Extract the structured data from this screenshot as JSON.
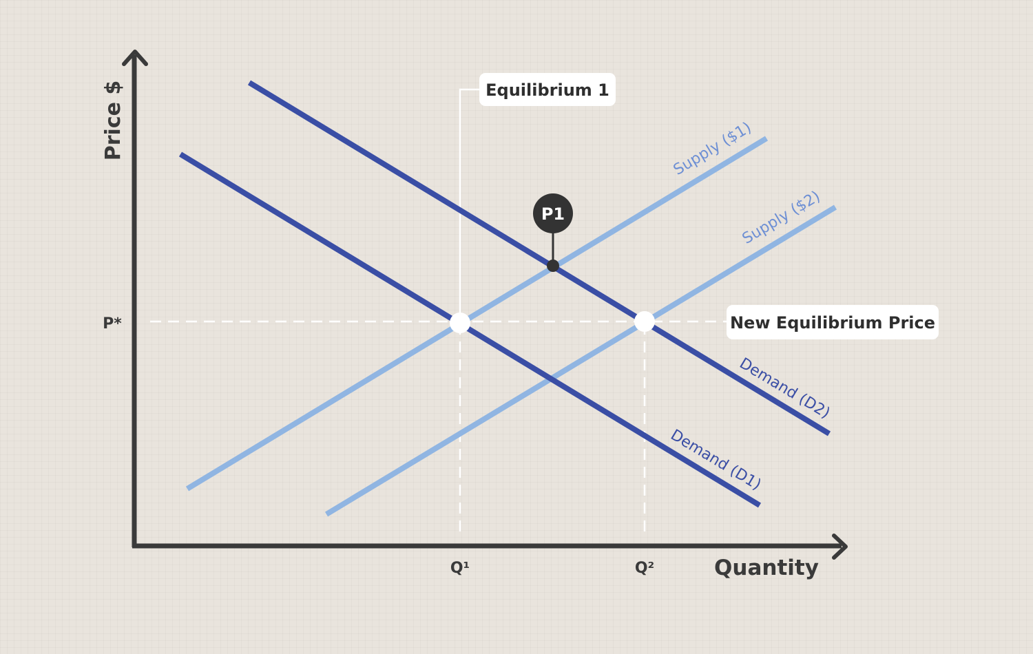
{
  "axes": {
    "y_label": "Price $",
    "x_label": "Quantity",
    "price_tick": "P*",
    "quantity_ticks": [
      "Q¹",
      "Q²"
    ]
  },
  "curves": {
    "supply_1": "Supply ($1)",
    "supply_2": "Supply ($2)",
    "demand_1": "Demand (D1)",
    "demand_2": "Demand (D2)"
  },
  "callouts": {
    "equilibrium_1": "Equilibrium 1",
    "p1_marker": "P1",
    "new_equilibrium_price": "New Equilibrium Price"
  },
  "colors": {
    "demand": "#3a4ea5",
    "supply": "#90b5e2",
    "axis": "#3a3a3a",
    "marker": "#333333",
    "guide": "#ffffff"
  }
}
